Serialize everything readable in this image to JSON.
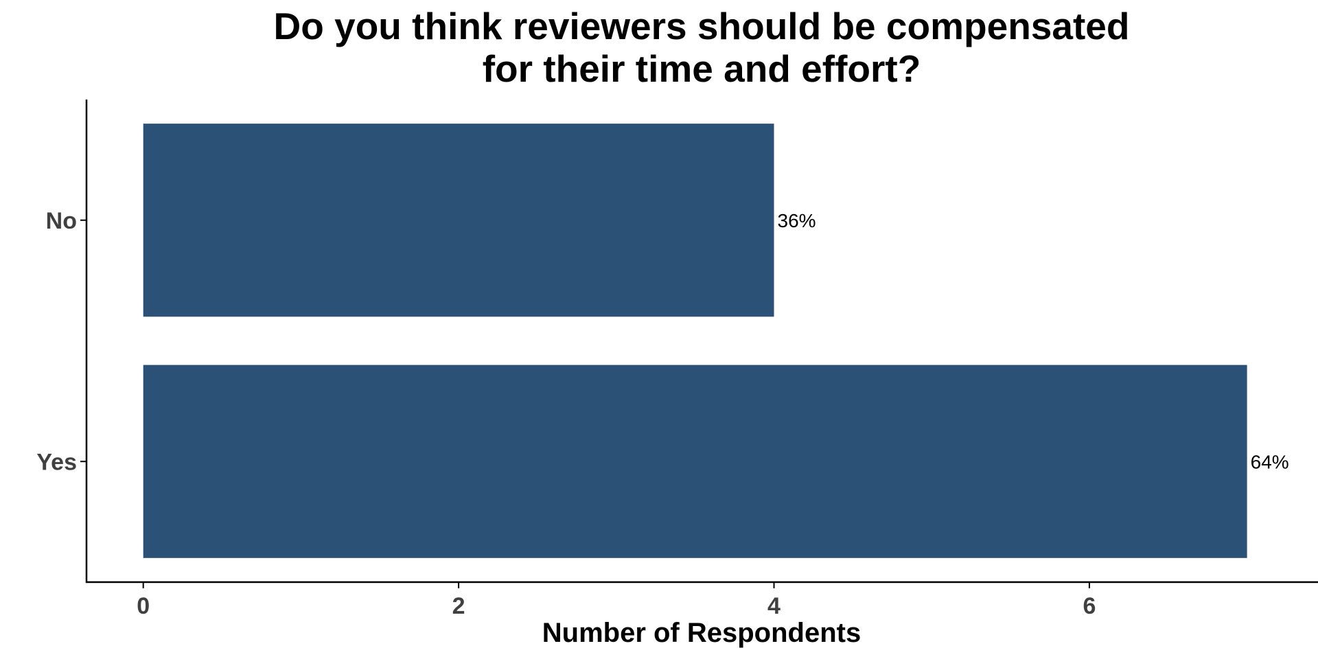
{
  "chart_data": {
    "type": "bar",
    "orientation": "horizontal",
    "title_lines": [
      "Do you think reviewers should be compensated",
      "for their time and effort?"
    ],
    "xlabel": "Number of Respondents",
    "ylabel": "",
    "categories": [
      "No",
      "Yes"
    ],
    "values": [
      4,
      7
    ],
    "data_labels": [
      "36%",
      "64%"
    ],
    "xlim": [
      -0.36,
      7.45
    ],
    "x_ticks": [
      0,
      2,
      4,
      6
    ],
    "x_tick_labels": [
      "0",
      "2",
      "4",
      "6"
    ],
    "grid": false,
    "legend": "none",
    "bar_color": "#2c5177",
    "axis_color": "#000000",
    "tick_label_color": "#404040"
  }
}
